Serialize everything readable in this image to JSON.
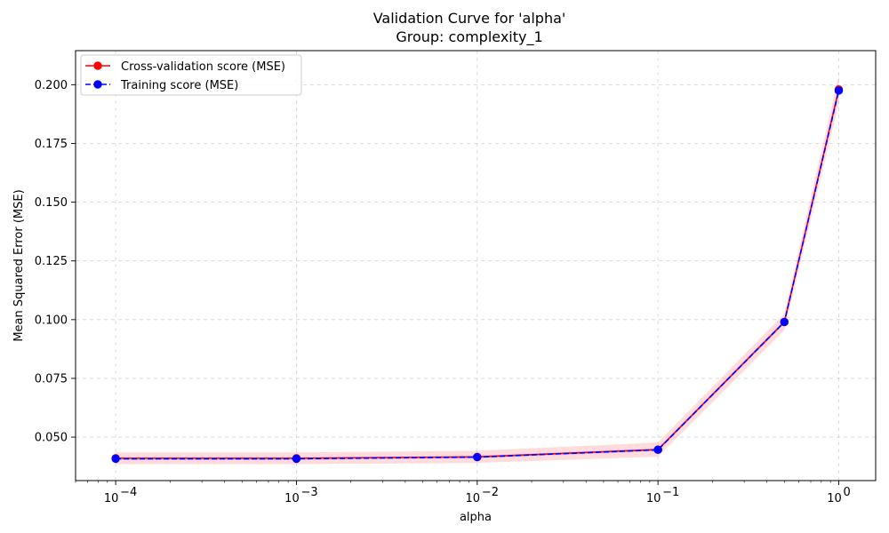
{
  "chart_data": {
    "type": "line",
    "title": "Validation Curve for 'alpha'",
    "subtitle": "Group: complexity_1",
    "xlabel": "alpha",
    "ylabel": "Mean Squared Error (MSE)",
    "x_scale": "log",
    "xlim": [
      6e-05,
      1.6
    ],
    "ylim": [
      0.0315,
      0.2145
    ],
    "grid": true,
    "legend_position": "top-left",
    "x_ticks": [
      {
        "value": 0.0001,
        "base": "10",
        "exp": "−4"
      },
      {
        "value": 0.001,
        "base": "10",
        "exp": "−3"
      },
      {
        "value": 0.01,
        "base": "10",
        "exp": "−2"
      },
      {
        "value": 0.1,
        "base": "10",
        "exp": "−1"
      },
      {
        "value": 1,
        "base": "10",
        "exp": "0"
      }
    ],
    "y_ticks": [
      {
        "value": 0.05,
        "label": "0.050"
      },
      {
        "value": 0.075,
        "label": "0.075"
      },
      {
        "value": 0.1,
        "label": "0.100"
      },
      {
        "value": 0.125,
        "label": "0.125"
      },
      {
        "value": 0.15,
        "label": "0.150"
      },
      {
        "value": 0.175,
        "label": "0.175"
      },
      {
        "value": 0.2,
        "label": "0.200"
      }
    ],
    "x": [
      0.0001,
      0.001,
      0.01,
      0.1,
      0.5,
      1.0
    ],
    "series": [
      {
        "name": "Cross-validation score (MSE)",
        "color": "#ff0000",
        "linestyle": "solid",
        "marker": "circle",
        "values": [
          0.041,
          0.041,
          0.0416,
          0.0447,
          0.099,
          0.198
        ],
        "band_half_width": [
          0.0025,
          0.0025,
          0.0026,
          0.003,
          0.0035,
          0.006
        ],
        "band_color": "#ff9999"
      },
      {
        "name": "Training score (MSE)",
        "color": "#0000ff",
        "linestyle": "dashed",
        "marker": "circle",
        "values": [
          0.0408,
          0.0408,
          0.0415,
          0.0446,
          0.099,
          0.1975
        ],
        "band_half_width": [
          0.0006,
          0.0006,
          0.0006,
          0.0006,
          0.0008,
          0.001
        ],
        "band_color": "#9999ff"
      }
    ]
  }
}
